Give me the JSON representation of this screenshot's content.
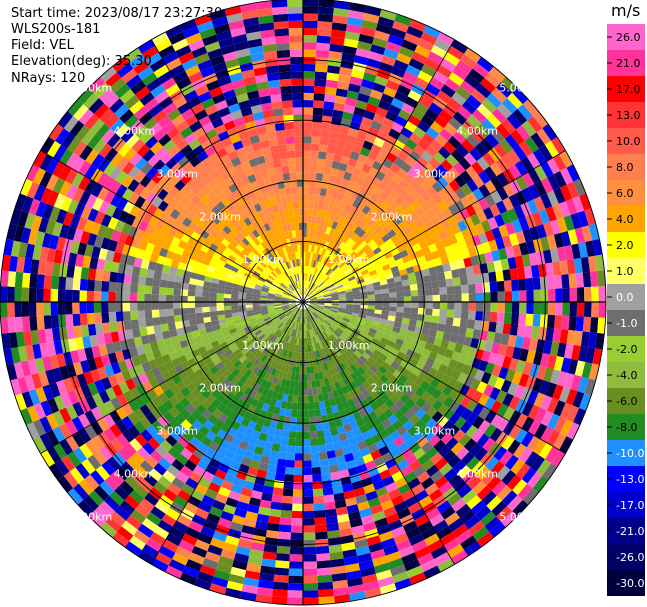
{
  "info": {
    "start_time": "Start time: 2023/08/17 23:27:30",
    "instrument": "WLS200s-181",
    "field": "Field: VEL",
    "elevation": "Elevation(deg): 35.30",
    "nrays": "NRays: 120"
  },
  "chart_data": {
    "type": "heatmap",
    "projection": "polar-ppi",
    "field": "VEL",
    "nrays": 120,
    "max_range_km": 5.0,
    "range_ring_labels": [
      {
        "value": 1.0,
        "label": "1.00km"
      },
      {
        "value": 2.0,
        "label": "2.00km"
      },
      {
        "value": 3.0,
        "label": "3.00km"
      },
      {
        "value": 4.0,
        "label": "4.00km"
      },
      {
        "value": 5.0,
        "label": "5.00km"
      }
    ],
    "colorbar": {
      "unit": "m/s",
      "ticks": [
        "26.0",
        "21.0",
        "17.0",
        "13.0",
        "10.0",
        "8.0",
        "6.0",
        "4.0",
        "2.0",
        "1.0",
        "0.0",
        "-1.0",
        "-2.0",
        "-4.0",
        "-6.0",
        "-8.0",
        "-10.0",
        "-13.0",
        "-17.0",
        "-21.0",
        "-26.0",
        "-30.0"
      ],
      "bins": [
        {
          "min": 26,
          "max": 30,
          "color": "#ff66cc"
        },
        {
          "min": 21,
          "max": 26,
          "color": "#ff3399"
        },
        {
          "min": 17,
          "max": 21,
          "color": "#ff0000"
        },
        {
          "min": 13,
          "max": 17,
          "color": "#ff3333"
        },
        {
          "min": 10,
          "max": 13,
          "color": "#ff5a4a"
        },
        {
          "min": 8,
          "max": 10,
          "color": "#ff7f50"
        },
        {
          "min": 6,
          "max": 8,
          "color": "#ff9040"
        },
        {
          "min": 4,
          "max": 6,
          "color": "#ffa500"
        },
        {
          "min": 2,
          "max": 4,
          "color": "#ffff00"
        },
        {
          "min": 1,
          "max": 2,
          "color": "#ffff66"
        },
        {
          "min": 0,
          "max": 1,
          "color": "#a0a0a0"
        },
        {
          "min": -1,
          "max": 0,
          "color": "#6e6e6e"
        },
        {
          "min": -2,
          "max": -1,
          "color": "#9acd32"
        },
        {
          "min": -4,
          "max": -2,
          "color": "#8fbc3f"
        },
        {
          "min": -6,
          "max": -4,
          "color": "#6b8e23"
        },
        {
          "min": -8,
          "max": -6,
          "color": "#228b22"
        },
        {
          "min": -10,
          "max": -8,
          "color": "#1e90ff"
        },
        {
          "min": -13,
          "max": -10,
          "color": "#0000ff"
        },
        {
          "min": -17,
          "max": -13,
          "color": "#0000cd"
        },
        {
          "min": -21,
          "max": -17,
          "color": "#00008b"
        },
        {
          "min": -26,
          "max": -21,
          "color": "#000066"
        },
        {
          "min": -30,
          "max": -26,
          "color": "#00003f"
        }
      ]
    },
    "pattern": {
      "near_range_km": 2.6,
      "northern_half_near": "positive (2 to 13 m/s)",
      "southern_half_near": "negative (-1 to -8 m/s)",
      "far_range": "noise across full scale"
    },
    "grid": true
  }
}
